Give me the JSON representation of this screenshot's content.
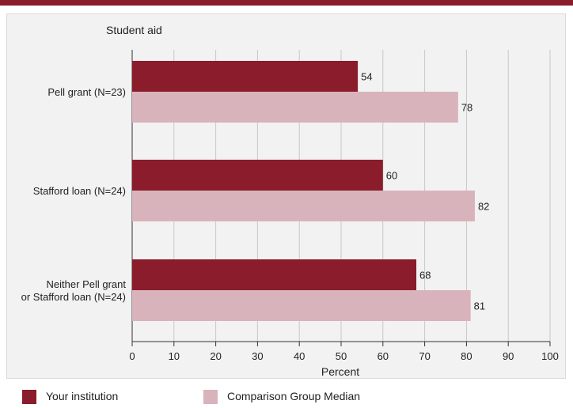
{
  "colors": {
    "top_rule": "#8a1c2c",
    "your_institution": "#8a1c2c",
    "comparison_group": "#d9b3bb",
    "gridline": "#c8c8c8",
    "panel": "#f2f2f2"
  },
  "chart_data": {
    "type": "bar",
    "orientation": "horizontal",
    "title": "Student aid",
    "xlabel": "Percent",
    "xlim": [
      0,
      100
    ],
    "xticks": [
      "0",
      "10",
      "20",
      "30",
      "40",
      "50",
      "60",
      "70",
      "80",
      "90",
      "100"
    ],
    "grid": "vertical",
    "legend_position": "bottom",
    "categories": [
      [
        "Pell grant  (N=23)"
      ],
      [
        "Stafford loan (N=24)"
      ],
      [
        "Neither Pell grant",
        "or Stafford loan (N=24)"
      ]
    ],
    "series": [
      {
        "name": "Your institution",
        "values": [
          54,
          60,
          68
        ],
        "labels": [
          "54",
          "60",
          "68"
        ]
      },
      {
        "name": "Comparison Group Median",
        "values": [
          78,
          82,
          81
        ],
        "labels": [
          "78",
          "82",
          "81"
        ]
      }
    ]
  }
}
